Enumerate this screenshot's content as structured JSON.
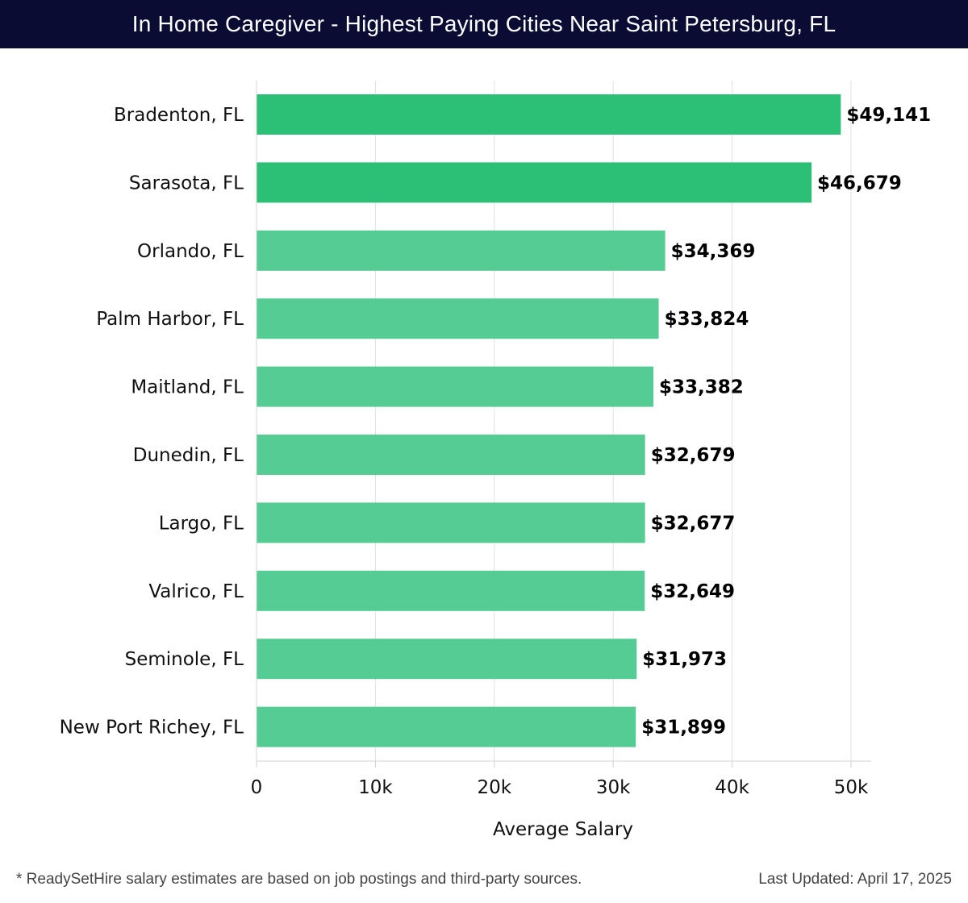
{
  "title": "In Home Caregiver - Highest Paying Cities Near Saint Petersburg, FL",
  "footer": {
    "note": "* ReadySetHire salary estimates are based on job postings and third-party sources.",
    "updated": "Last Updated: April 17, 2025"
  },
  "colors": {
    "title_bg": "#0b0c33",
    "bar_top": "#2cc077",
    "bar_rest": "#55cc94",
    "grid": "#e2e2e2"
  },
  "chart_data": {
    "type": "bar",
    "orientation": "horizontal",
    "title": "In Home Caregiver - Highest Paying Cities Near Saint Petersburg, FL",
    "xlabel": "Average Salary",
    "ylabel": "",
    "xlim": [
      0,
      50000
    ],
    "xticks": [
      0,
      10000,
      20000,
      30000,
      40000,
      50000
    ],
    "xtick_labels": [
      "0",
      "10k",
      "20k",
      "30k",
      "40k",
      "50k"
    ],
    "grid": true,
    "categories": [
      "Bradenton, FL",
      "Sarasota, FL",
      "Orlando, FL",
      "Palm Harbor, FL",
      "Maitland, FL",
      "Dunedin, FL",
      "Largo, FL",
      "Valrico, FL",
      "Seminole, FL",
      "New Port Richey, FL"
    ],
    "values": [
      49141,
      46679,
      34369,
      33824,
      33382,
      32679,
      32677,
      32649,
      31973,
      31899
    ],
    "value_labels": [
      "$49,141",
      "$46,679",
      "$34,369",
      "$33,824",
      "$33,382",
      "$32,679",
      "$32,677",
      "$32,649",
      "$31,973",
      "$31,899"
    ],
    "highlight_top": 2
  }
}
